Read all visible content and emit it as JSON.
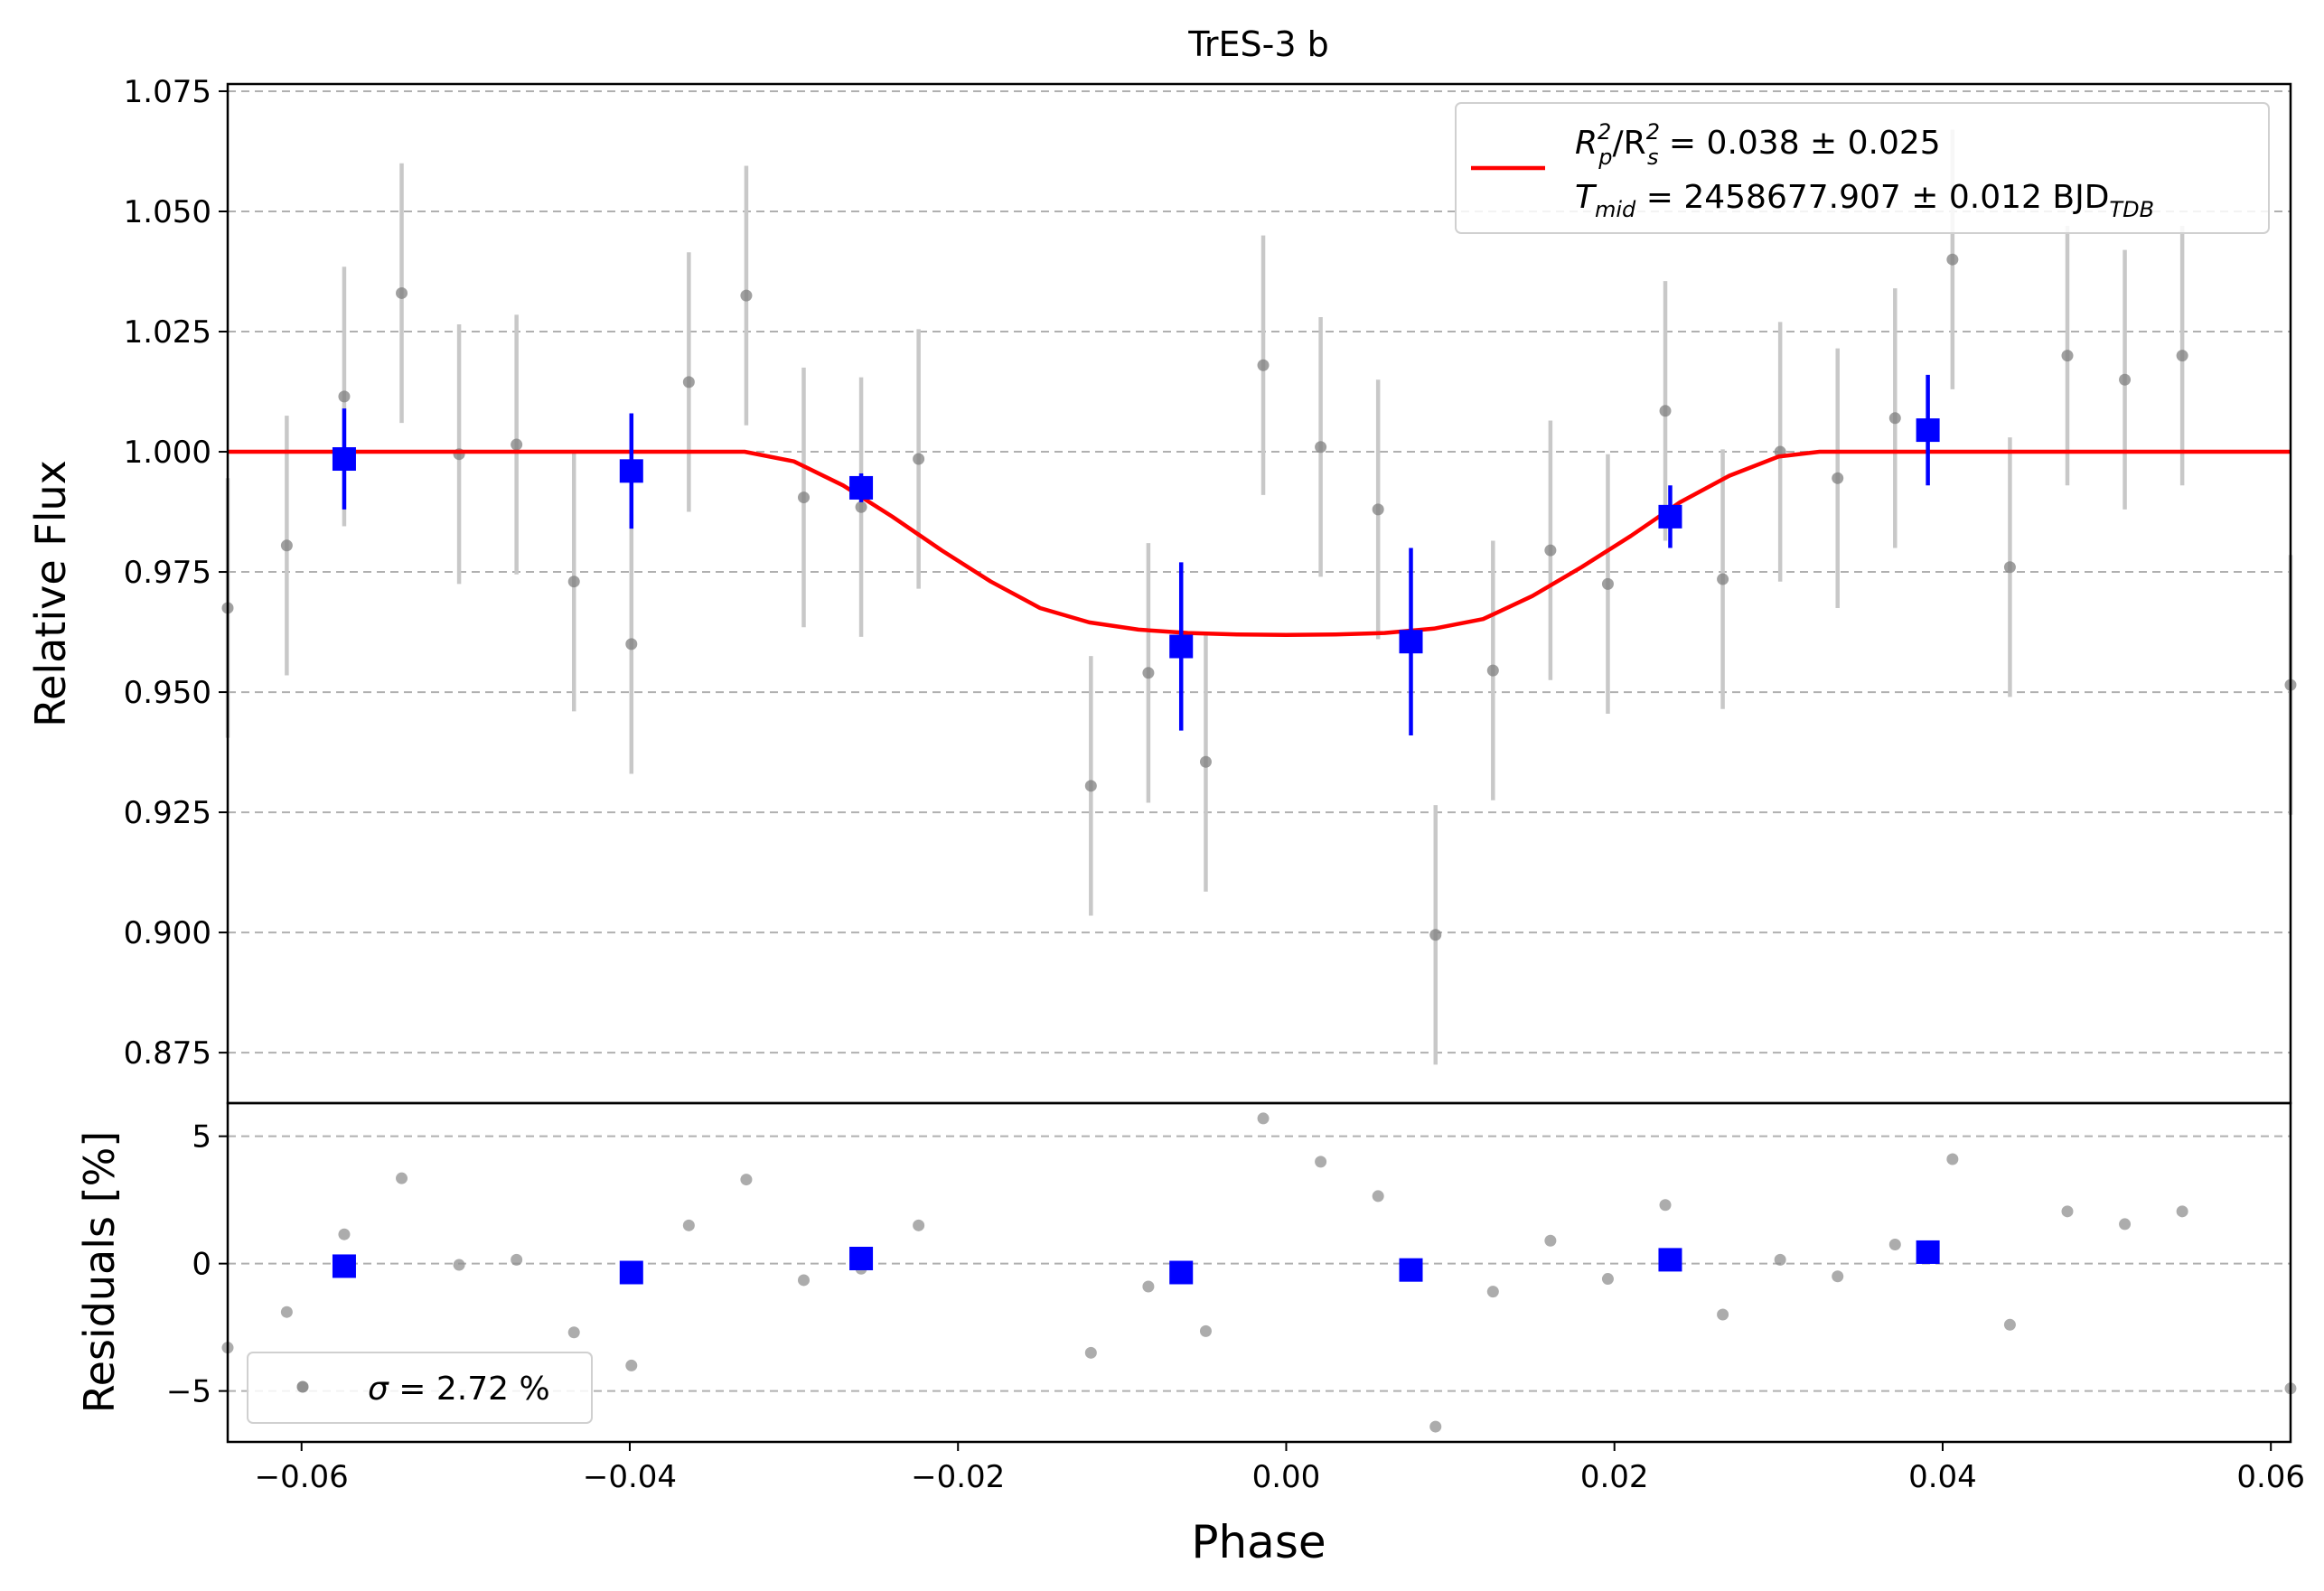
{
  "chart_data": [
    {
      "type": "scatter",
      "title": "TrES-3 b",
      "xlabel": "",
      "ylabel": "Relative Flux",
      "xlim": [
        -0.0645,
        0.0612
      ],
      "ylim": [
        0.8645,
        1.0765
      ],
      "yticks": [
        0.875,
        0.9,
        0.925,
        0.95,
        0.975,
        1.0,
        1.025,
        1.05,
        1.075
      ],
      "ytick_labels": [
        "0.875",
        "0.900",
        "0.925",
        "0.950",
        "0.975",
        "1.000",
        "1.025",
        "1.050",
        "1.075"
      ],
      "grid": "horizontal dashed",
      "legend_placement": "top-right",
      "legend": {
        "line1": {
          "pre": "R",
          "sub1": "p",
          "sup1": "2",
          "mid": "/R",
          "sub2": "s",
          "sup2": "2",
          "post": " = 0.038 ± 0.025"
        },
        "line2": {
          "pre": "T",
          "sub1": "mid",
          "mid": " = 2458677.907 ± 0.012 BJD",
          "sub2": "TDB"
        }
      },
      "series": [
        {
          "kind": "raw",
          "color": "#808080",
          "errorbar_color": "#c8c8c8",
          "x": [
            -0.0646,
            -0.0609,
            -0.0574,
            -0.0539,
            -0.0504,
            -0.0469,
            -0.0434,
            -0.0399,
            -0.0364,
            -0.0329,
            -0.0294,
            -0.0259,
            -0.0224,
            -0.0119,
            -0.0084,
            -0.0049,
            -0.0014,
            0.0021,
            0.0056,
            0.0091,
            0.0126,
            0.0161,
            0.0196,
            0.0231,
            0.0266,
            0.0301,
            0.0336,
            0.0371,
            0.0406,
            0.0441,
            0.0476,
            0.0511,
            0.0546,
            0.0612
          ],
          "y": [
            0.9675,
            0.9805,
            1.0115,
            1.033,
            0.9995,
            1.0015,
            0.973,
            0.96,
            1.0145,
            1.0325,
            0.9905,
            0.9885,
            0.9985,
            0.9305,
            0.954,
            0.9355,
            1.018,
            1.001,
            0.988,
            0.8995,
            0.9545,
            0.9795,
            0.9725,
            1.0085,
            0.9735,
            1.0,
            0.9945,
            1.007,
            1.04,
            0.976,
            1.02,
            1.015,
            1.02,
            0.9515
          ],
          "yerr": [
            0.027,
            0.027,
            0.027,
            0.027,
            0.027,
            0.027,
            0.027,
            0.027,
            0.027,
            0.027,
            0.027,
            0.027,
            0.027,
            0.027,
            0.027,
            0.027,
            0.027,
            0.027,
            0.027,
            0.027,
            0.027,
            0.027,
            0.027,
            0.027,
            0.027,
            0.027,
            0.027,
            0.027,
            0.027,
            0.027,
            0.027,
            0.027,
            0.027,
            0.027
          ]
        },
        {
          "kind": "binned",
          "color": "#0000ff",
          "x": [
            -0.0574,
            -0.0399,
            -0.0259,
            -0.0064,
            0.0076,
            0.0234,
            0.0391
          ],
          "y": [
            0.9985,
            0.996,
            0.9925,
            0.9595,
            0.9605,
            0.9865,
            1.0045
          ],
          "yerr": [
            0.0105,
            0.012,
            0.003,
            0.0175,
            0.0195,
            0.0065,
            0.0115
          ]
        },
        {
          "kind": "model",
          "color": "#ff0000",
          "x": [
            -0.0645,
            -0.033,
            -0.03,
            -0.027,
            -0.024,
            -0.021,
            -0.018,
            -0.015,
            -0.012,
            -0.009,
            -0.006,
            -0.003,
            0.0,
            0.003,
            0.006,
            0.009,
            0.012,
            0.015,
            0.018,
            0.021,
            0.024,
            0.027,
            0.03,
            0.0325,
            0.0612
          ],
          "y": [
            1.0,
            1.0,
            0.998,
            0.993,
            0.9865,
            0.9795,
            0.973,
            0.9675,
            0.9645,
            0.963,
            0.9623,
            0.962,
            0.9619,
            0.962,
            0.9623,
            0.9632,
            0.9652,
            0.97,
            0.976,
            0.9825,
            0.9895,
            0.995,
            0.999,
            1.0,
            1.0
          ]
        }
      ]
    },
    {
      "type": "scatter",
      "title": "",
      "xlabel": "Phase",
      "ylabel": "Residuals [%]",
      "xlim": [
        -0.0645,
        0.0612
      ],
      "ylim": [
        -7.0,
        6.3
      ],
      "yticks": [
        -5,
        0,
        5
      ],
      "ytick_labels": [
        "−5",
        "0",
        "5"
      ],
      "xticks": [
        -0.06,
        -0.04,
        -0.02,
        0.0,
        0.02,
        0.04,
        0.06
      ],
      "xtick_labels": [
        "−0.06",
        "−0.04",
        "−0.02",
        "0.00",
        "0.02",
        "0.04",
        "0.06"
      ],
      "grid": "horizontal dashed",
      "legend_placement": "bottom-left",
      "legend": {
        "symbol": "σ",
        "text": " = 2.72 %"
      },
      "series": [
        {
          "kind": "raw",
          "color": "#909090",
          "x": [
            -0.0646,
            -0.0609,
            -0.0574,
            -0.0539,
            -0.0504,
            -0.0469,
            -0.0434,
            -0.0399,
            -0.0364,
            -0.0329,
            -0.0294,
            -0.0259,
            -0.0224,
            -0.0119,
            -0.0084,
            -0.0049,
            -0.0014,
            0.0021,
            0.0056,
            0.0091,
            0.0126,
            0.0161,
            0.0196,
            0.0231,
            0.0266,
            0.0301,
            0.0336,
            0.0371,
            0.0406,
            0.0441,
            0.0476,
            0.0511,
            0.0546,
            0.0612
          ],
          "y": [
            -3.3,
            -1.9,
            1.15,
            3.35,
            -0.05,
            0.15,
            -2.7,
            -4.0,
            1.5,
            3.3,
            -0.65,
            -0.2,
            1.5,
            -3.5,
            -0.9,
            -2.65,
            5.7,
            4.0,
            2.65,
            -6.4,
            -1.1,
            0.9,
            -0.6,
            2.3,
            -2.0,
            0.15,
            -0.5,
            0.75,
            4.1,
            -2.4,
            2.05,
            1.55,
            2.05,
            -4.9
          ]
        },
        {
          "kind": "binned",
          "color": "#0000ff",
          "x": [
            -0.0574,
            -0.0399,
            -0.0259,
            -0.0064,
            0.0076,
            0.0234,
            0.0391
          ],
          "y": [
            -0.1,
            -0.35,
            0.2,
            -0.35,
            -0.25,
            0.15,
            0.45
          ]
        }
      ]
    }
  ]
}
